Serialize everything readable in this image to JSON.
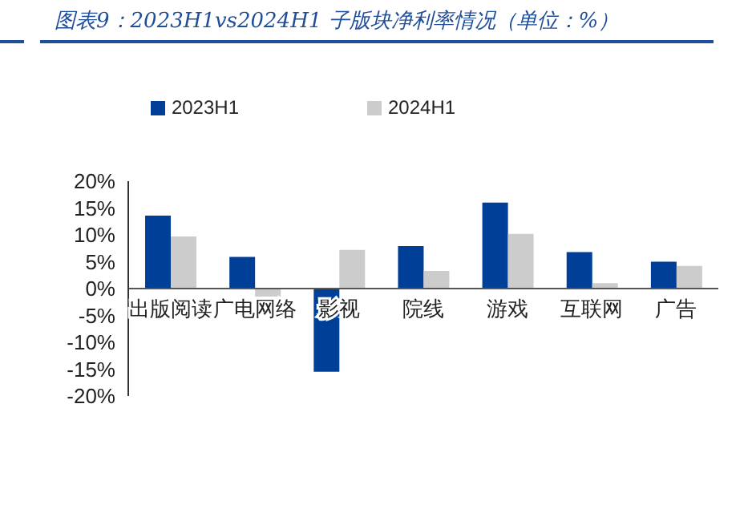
{
  "chart_data": {
    "type": "bar",
    "title": "图表9：2023H1vs2024H1 子版块净利率情况（单位：%）",
    "categories": [
      "出版阅读",
      "广电网络",
      "影视",
      "院线",
      "游戏",
      "互联网",
      "广告"
    ],
    "series": [
      {
        "name": "2023H1",
        "color": "#003f98",
        "values": [
          13.6,
          5.9,
          -15.5,
          7.9,
          16.0,
          6.8,
          5.0
        ]
      },
      {
        "name": "2024H1",
        "color": "#cccccc",
        "values": [
          9.7,
          -1.5,
          7.2,
          3.3,
          10.2,
          1.0,
          4.2
        ]
      }
    ],
    "ylim": [
      -20,
      20
    ],
    "yticks": [
      {
        "value": -20,
        "label": "-20%"
      },
      {
        "value": -15,
        "label": "-15%"
      },
      {
        "value": -10,
        "label": "-10%"
      },
      {
        "value": -5,
        "label": "-5%"
      },
      {
        "value": 0,
        "label": "0%"
      },
      {
        "value": 5,
        "label": "5%"
      },
      {
        "value": 10,
        "label": "10%"
      },
      {
        "value": 15,
        "label": "15%"
      },
      {
        "value": 20,
        "label": "20%"
      }
    ],
    "grid": false,
    "legend": "top"
  }
}
